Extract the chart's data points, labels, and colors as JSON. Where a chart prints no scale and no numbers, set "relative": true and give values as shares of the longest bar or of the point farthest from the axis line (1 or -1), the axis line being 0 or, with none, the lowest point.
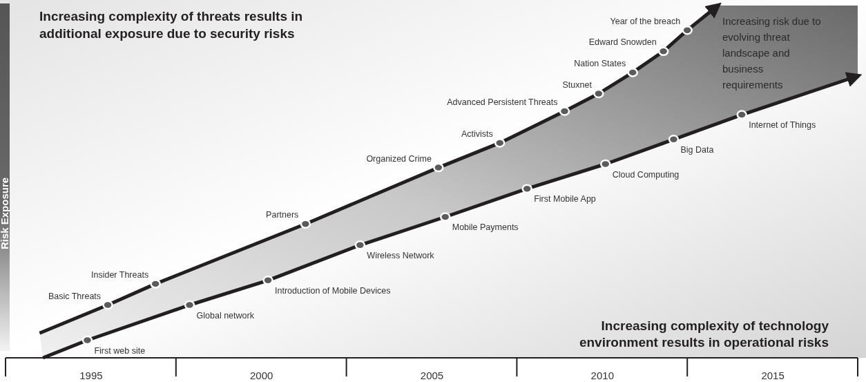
{
  "chart_data": {
    "type": "line",
    "relative": true,
    "title": "Increasing complexity of threats results in\nadditional exposure due to security risks",
    "ylabel": "Risk Exposure",
    "xlim": [
      1992.5,
      2017.5
    ],
    "xticks": [
      1995,
      2000,
      2005,
      2010,
      2015
    ],
    "marker": "circle",
    "series": [
      {
        "type": "line",
        "marker": "none",
        "color": "#231f20",
        "x": [
          1993.5,
          1995.5,
          1996.9,
          2001.3,
          2005.2,
          2007.0,
          2008.9,
          2009.9,
          2010.9,
          2011.8,
          2012.5,
          2013.4
        ],
        "values": [
          0.07,
          0.15,
          0.21,
          0.38,
          0.54,
          0.61,
          0.7,
          0.75,
          0.81,
          0.87,
          0.93,
          1
        ]
      },
      {
        "type": "line",
        "marker": "none",
        "color": "#231f20",
        "x": [
          1993.6,
          1994.9,
          1997.9,
          2000.2,
          2002.9,
          2005.4,
          2007.8,
          2010.1,
          2012.1,
          2014.1,
          2017.5
        ],
        "values": [
          0.0,
          0.05,
          0.15,
          0.22,
          0.32,
          0.4,
          0.48,
          0.55,
          0.62,
          0.69,
          0.8
        ]
      },
      {
        "type": "scatter",
        "color": "#5b5b5b",
        "x": [
          1995.5,
          1996.9,
          2001.3,
          2005.2,
          2007.0,
          2008.9,
          2009.9,
          2010.9,
          2011.8,
          2012.5
        ],
        "values": [
          0.15,
          0.21,
          0.38,
          0.54,
          0.61,
          0.7,
          0.75,
          0.81,
          0.87,
          0.93
        ]
      },
      {
        "type": "scatter",
        "color": "#5b5b5b",
        "x": [
          1994.9,
          1997.9,
          2000.2,
          2002.9,
          2005.4,
          2007.8,
          2010.1,
          2012.1,
          2014.1
        ],
        "values": [
          0.05,
          0.15,
          0.22,
          0.32,
          0.4,
          0.48,
          0.55,
          0.62,
          0.69
        ]
      }
    ],
    "annotations": [
      "Increasing risk due to\nevolving threat\nlandscape and\nbusiness\nrequirements",
      "Increasing complexity of technology\nenvironment results in operational risks",
      {
        "text": "Basic Threats",
        "x": 1995.5,
        "y": 0.15
      },
      {
        "text": "Insider Threats",
        "x": 1996.9,
        "y": 0.21
      },
      {
        "text": "Partners",
        "x": 2001.3,
        "y": 0.38
      },
      {
        "text": "Organized Crime",
        "x": 2005.2,
        "y": 0.54
      },
      {
        "text": "Activists",
        "x": 2007.0,
        "y": 0.61
      },
      {
        "text": "Advanced Persistent Threats",
        "x": 2008.9,
        "y": 0.7
      },
      {
        "text": "Stuxnet",
        "x": 2009.9,
        "y": 0.75
      },
      {
        "text": "Nation States",
        "x": 2010.9,
        "y": 0.81
      },
      {
        "text": "Edward Snowden",
        "x": 2011.8,
        "y": 0.87
      },
      {
        "text": "Year of the breach",
        "x": 2012.5,
        "y": 0.93
      },
      {
        "text": "First web site",
        "x": 1994.9,
        "y": 0.05
      },
      {
        "text": "Global network",
        "x": 1997.9,
        "y": 0.15
      },
      {
        "text": "Introduction of Mobile Devices",
        "x": 2000.2,
        "y": 0.22
      },
      {
        "text": "Wireless Network",
        "x": 2002.9,
        "y": 0.32
      },
      {
        "text": "Mobile Payments",
        "x": 2005.4,
        "y": 0.4
      },
      {
        "text": "First Mobile App",
        "x": 2007.8,
        "y": 0.48
      },
      {
        "text": "Cloud Computing",
        "x": 2010.1,
        "y": 0.55
      },
      {
        "text": "Big Data",
        "x": 2012.1,
        "y": 0.62
      },
      {
        "text": "Internet of Things",
        "x": 2014.1,
        "y": 0.69
      }
    ]
  }
}
